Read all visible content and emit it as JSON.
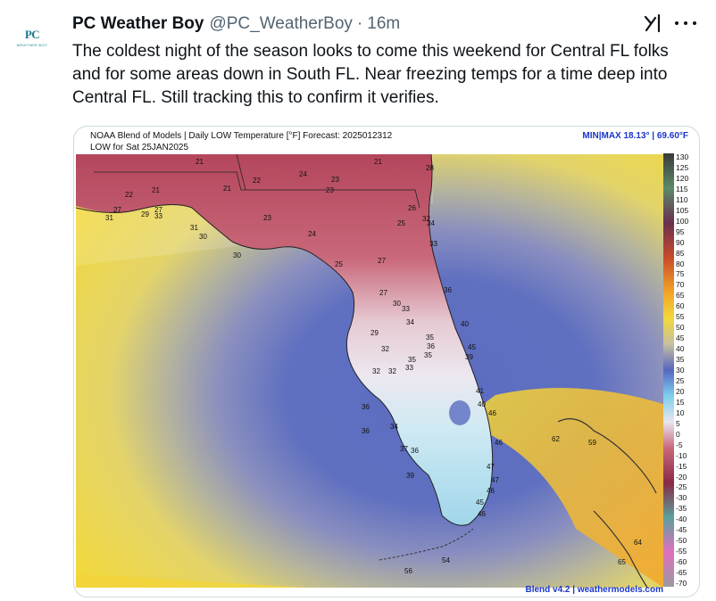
{
  "tweet": {
    "display_name": "PC Weather Boy",
    "handle": "@PC_WeatherBoy",
    "separator": "·",
    "time": "16m",
    "avatar_text": "PC",
    "avatar_subtext": "WEATHER BOY",
    "text": "The coldest night of the season looks to come this weekend for Central FL folks and for some areas down in South FL. Near freezing temps for a time deep into Central FL. Still tracking this to confirm it verifies."
  },
  "icons": {
    "grok": "grok-icon",
    "more": "more-icon"
  },
  "map": {
    "title_line1": "NOAA Blend of Models | Daily LOW Temperature [°F] Forecast: 2025012312",
    "title_line2": "LOW for Sat 25JAN2025",
    "minmax": "MIN|MAX 18.13°  |  69.60°F",
    "footer": "Blend v4.2 | weathermodels.com",
    "legend_labels": [
      "130",
      "125",
      "120",
      "115",
      "110",
      "105",
      "100",
      "95",
      "90",
      "85",
      "80",
      "75",
      "70",
      "65",
      "60",
      "55",
      "50",
      "45",
      "40",
      "35",
      "30",
      "25",
      "20",
      "15",
      "10",
      "5",
      "0",
      "-5",
      "-10",
      "-15",
      "-20",
      "-25",
      "-30",
      "-35",
      "-40",
      "-45",
      "-50",
      "-55",
      "-60",
      "-65",
      "-70"
    ],
    "point_labels": [
      "21",
      "21",
      "28",
      "24",
      "22",
      "23",
      "23",
      "22",
      "21",
      "21",
      "27",
      "31",
      "29",
      "27",
      "33",
      "26",
      "32",
      "25",
      "23",
      "34",
      "31",
      "30",
      "24",
      "33",
      "30",
      "27",
      "25",
      "27",
      "36",
      "30",
      "33",
      "34",
      "40",
      "29",
      "35",
      "36",
      "35",
      "32",
      "45",
      "39",
      "35",
      "32",
      "32",
      "33",
      "36",
      "41",
      "40",
      "36",
      "46",
      "34",
      "46",
      "37",
      "36",
      "47",
      "39",
      "47",
      "46",
      "45",
      "46",
      "54",
      "56",
      "62",
      "59",
      "64",
      "65"
    ],
    "colors": {
      "cold": "#b3445a",
      "frost": "#e9e4ee",
      "mild": "#bfe3f2",
      "ocean_near": "#6f7fc4",
      "ocean_mid": "#4f5fb8",
      "ocean_far": "#b8b59c",
      "warm": "#f1d23a",
      "hot": "#f2a327",
      "border": "#222222"
    }
  }
}
